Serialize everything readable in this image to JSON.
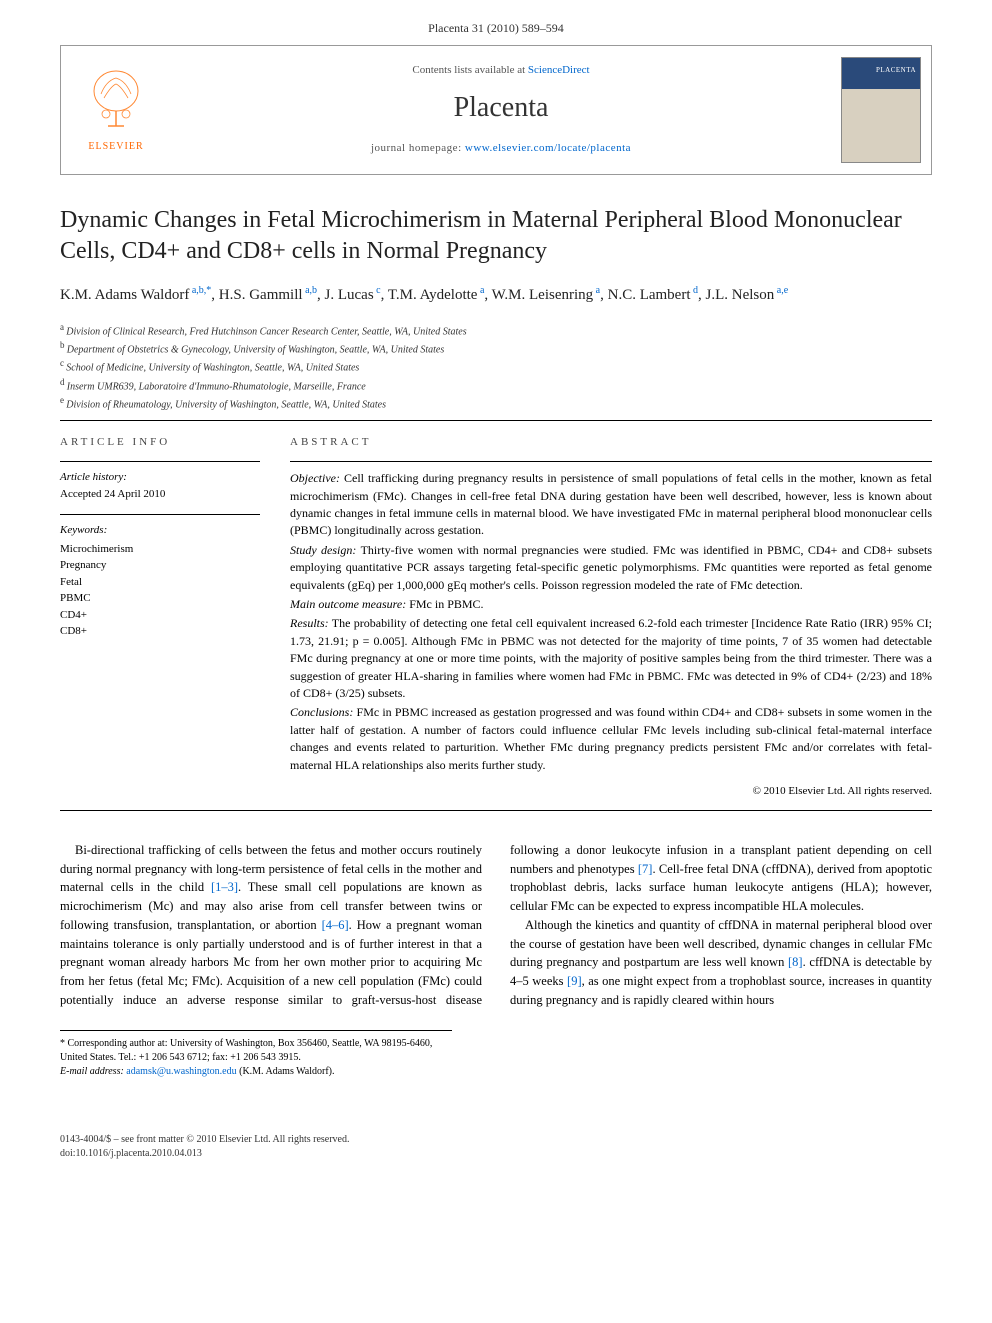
{
  "header": {
    "citation": "Placenta 31 (2010) 589–594"
  },
  "journalBox": {
    "publisher": "ELSEVIER",
    "contentsLine": "Contents lists available at",
    "contentsLink": "ScienceDirect",
    "journalName": "Placenta",
    "homepageLabel": "journal homepage:",
    "homepageUrl": "www.elsevier.com/locate/placenta"
  },
  "article": {
    "title": "Dynamic Changes in Fetal Microchimerism in Maternal Peripheral Blood Mononuclear Cells, CD4+ and CD8+ cells in Normal Pregnancy",
    "authorsHtml": "K.M. Adams Waldorf",
    "authors": [
      {
        "name": "K.M. Adams Waldorf",
        "sup": "a,b,*"
      },
      {
        "name": "H.S. Gammill",
        "sup": "a,b"
      },
      {
        "name": "J. Lucas",
        "sup": "c"
      },
      {
        "name": "T.M. Aydelotte",
        "sup": "a"
      },
      {
        "name": "W.M. Leisenring",
        "sup": "a"
      },
      {
        "name": "N.C. Lambert",
        "sup": "d"
      },
      {
        "name": "J.L. Nelson",
        "sup": "a,e"
      }
    ],
    "affiliations": [
      {
        "sup": "a",
        "text": "Division of Clinical Research, Fred Hutchinson Cancer Research Center, Seattle, WA, United States"
      },
      {
        "sup": "b",
        "text": "Department of Obstetrics & Gynecology, University of Washington, Seattle, WA, United States"
      },
      {
        "sup": "c",
        "text": "School of Medicine, University of Washington, Seattle, WA, United States"
      },
      {
        "sup": "d",
        "text": "Inserm UMR639, Laboratoire d'Immuno-Rhumatologie, Marseille, France"
      },
      {
        "sup": "e",
        "text": "Division of Rheumatology, University of Washington, Seattle, WA, United States"
      }
    ]
  },
  "info": {
    "heading": "ARTICLE INFO",
    "historyLabel": "Article history:",
    "historyText": "Accepted 24 April 2010",
    "keywordsLabel": "Keywords:",
    "keywords": [
      "Microchimerism",
      "Pregnancy",
      "Fetal",
      "PBMC",
      "CD4+",
      "CD8+"
    ]
  },
  "abstract": {
    "heading": "ABSTRACT",
    "objective": "Cell trafficking during pregnancy results in persistence of small populations of fetal cells in the mother, known as fetal microchimerism (FMc). Changes in cell-free fetal DNA during gestation have been well described, however, less is known about dynamic changes in fetal immune cells in maternal blood. We have investigated FMc in maternal peripheral blood mononuclear cells (PBMC) longitudinally across gestation.",
    "studyDesign": "Thirty-five women with normal pregnancies were studied. FMc was identified in PBMC, CD4+ and CD8+ subsets employing quantitative PCR assays targeting fetal-specific genetic polymorphisms. FMc quantities were reported as fetal genome equivalents (gEq) per 1,000,000 gEq mother's cells. Poisson regression modeled the rate of FMc detection.",
    "mainOutcome": "FMc in PBMC.",
    "results": "The probability of detecting one fetal cell equivalent increased 6.2-fold each trimester [Incidence Rate Ratio (IRR) 95% CI; 1.73, 21.91; p = 0.005]. Although FMc in PBMC was not detected for the majority of time points, 7 of 35 women had detectable FMc during pregnancy at one or more time points, with the majority of positive samples being from the third trimester. There was a suggestion of greater HLA-sharing in families where women had FMc in PBMC. FMc was detected in 9% of CD4+ (2/23) and 18% of CD8+ (3/25) subsets.",
    "conclusions": "FMc in PBMC increased as gestation progressed and was found within CD4+ and CD8+ subsets in some women in the latter half of gestation. A number of factors could influence cellular FMc levels including sub-clinical fetal-maternal interface changes and events related to parturition. Whether FMc during pregnancy predicts persistent FMc and/or correlates with fetal-maternal HLA relationships also merits further study.",
    "copyright": "© 2010 Elsevier Ltd. All rights reserved."
  },
  "body": {
    "para1a": "Bi-directional trafficking of cells between the fetus and mother occurs routinely during normal pregnancy with long-term persistence of fetal cells in the mother and maternal cells in the child ",
    "ref1": "[1–3]",
    "para1b": ". These small cell populations are known as microchimerism (Mc) and may also arise from cell transfer between twins or following transfusion, transplantation, or abortion ",
    "ref2": "[4–6]",
    "para1c": ". How a pregnant woman maintains tolerance is only partially understood and is of further interest in that a pregnant woman already harbors Mc from her own mother prior to acquiring Mc from her fetus (fetal ",
    "para2a": "Mc; FMc). Acquisition of a new cell population (FMc) could potentially induce an adverse response similar to graft-versus-host disease following a donor leukocyte infusion in a transplant patient depending on cell numbers and phenotypes ",
    "ref3": "[7]",
    "para2b": ". Cell-free fetal DNA (cffDNA), derived from apoptotic trophoblast debris, lacks surface human leukocyte antigens (HLA); however, cellular FMc can be expected to express incompatible HLA molecules.",
    "para3a": "Although the kinetics and quantity of cffDNA in maternal peripheral blood over the course of gestation have been well described, dynamic changes in cellular FMc during pregnancy and postpartum are less well known ",
    "ref4": "[8]",
    "para3b": ". cffDNA is detectable by 4–5 weeks ",
    "ref5": "[9]",
    "para3c": ", as one might expect from a trophoblast source, increases in quantity during pregnancy and is rapidly cleared within hours"
  },
  "footer": {
    "corrLabel": "* Corresponding author at:",
    "corrText": "University of Washington, Box 356460, Seattle, WA 98195-6460, United States. Tel.: +1 206 543 6712; fax: +1 206 543 3915.",
    "emailLabel": "E-mail address:",
    "email": "adamsk@u.washington.edu",
    "emailSuffix": "(K.M. Adams Waldorf).",
    "issn": "0143-4004/$ – see front matter © 2010 Elsevier Ltd. All rights reserved.",
    "doi": "doi:10.1016/j.placenta.2010.04.013"
  },
  "labels": {
    "objective": "Objective:",
    "studyDesign": "Study design:",
    "mainOutcome": "Main outcome measure:",
    "results": "Results:",
    "conclusions": "Conclusions:"
  },
  "colors": {
    "link": "#0066cc",
    "elsevier": "#ff6600",
    "text": "#000000",
    "rule": "#000000"
  }
}
